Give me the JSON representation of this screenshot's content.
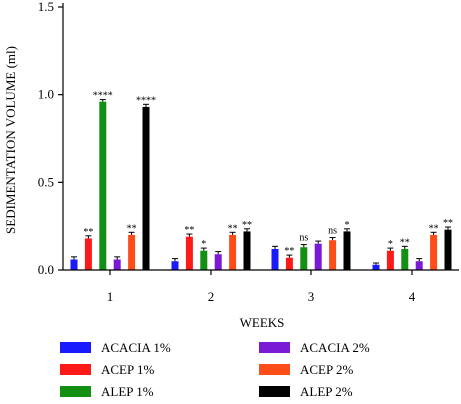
{
  "chart_data": {
    "type": "bar",
    "xlabel": "WEEKS",
    "ylabel": "SEDIMENTATION VOLUME (ml)",
    "categories": [
      "1",
      "2",
      "3",
      "4"
    ],
    "ylim": [
      0,
      1.5
    ],
    "yticks": [
      "0.0",
      "0.5",
      "1.0",
      "1.5"
    ],
    "grid": false,
    "legend_position": "bottom",
    "series": [
      {
        "name": "ACACIA 1%",
        "color": "#1a1aff",
        "values": [
          0.06,
          0.05,
          0.12,
          0.03
        ],
        "errors": [
          0.015,
          0.015,
          0.015,
          0.01
        ],
        "sig": [
          "",
          "",
          "",
          ""
        ]
      },
      {
        "name": "ACEP 1%",
        "color": "#ff1a1a",
        "values": [
          0.18,
          0.19,
          0.07,
          0.11
        ],
        "errors": [
          0.015,
          0.015,
          0.015,
          0.015
        ],
        "sig": [
          "**",
          "**",
          "**",
          "*"
        ]
      },
      {
        "name": "ALEP 1%",
        "color": "#138f13",
        "values": [
          0.96,
          0.11,
          0.13,
          0.12
        ],
        "errors": [
          0.012,
          0.015,
          0.015,
          0.015
        ],
        "sig": [
          "****",
          "*",
          "ns",
          "**"
        ]
      },
      {
        "name": "ACACIA 2%",
        "color": "#7a1ad6",
        "values": [
          0.06,
          0.09,
          0.15,
          0.05
        ],
        "errors": [
          0.015,
          0.015,
          0.015,
          0.015
        ],
        "sig": [
          "",
          "",
          "",
          ""
        ]
      },
      {
        "name": "ACEP 2%",
        "color": "#ff4d1a",
        "values": [
          0.2,
          0.2,
          0.17,
          0.2
        ],
        "errors": [
          0.015,
          0.015,
          0.015,
          0.015
        ],
        "sig": [
          "**",
          "**",
          "ns",
          "**"
        ]
      },
      {
        "name": "ALEP 2%",
        "color": "#000000",
        "values": [
          0.93,
          0.22,
          0.22,
          0.23
        ],
        "errors": [
          0.015,
          0.015,
          0.015,
          0.015
        ],
        "sig": [
          "****",
          "**",
          "*",
          "**"
        ]
      }
    ]
  }
}
